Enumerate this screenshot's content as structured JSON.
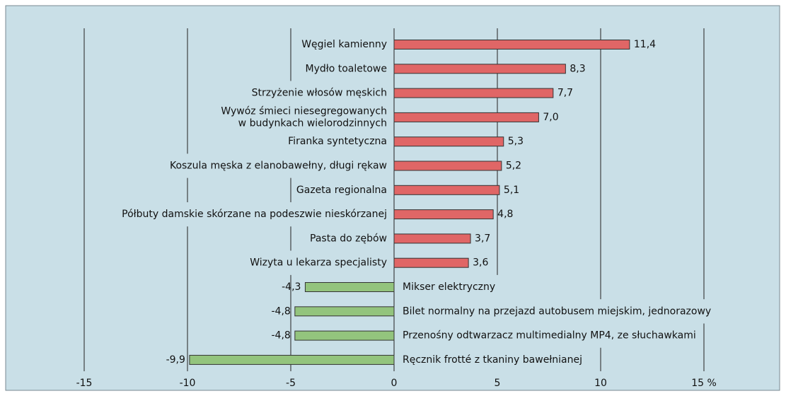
{
  "chart_data": {
    "type": "hbar",
    "categories": [
      "Węgiel kamienny",
      "Mydło toaletowe",
      "Strzyżenie włosów męskich",
      "Wywóz śmieci niesegregowanych\nw budynkach wielorodzinnych",
      "Firanka syntetyczna",
      "Koszula męska z elanobawełny, długi rękaw",
      "Gazeta regionalna",
      "Półbuty damskie skórzane na podeszwie nieskórzanej",
      "Pasta do zębów",
      "Wizyta u lekarza specjalisty",
      "Mikser elektryczny",
      "Bilet normalny na przejazd autobusem miejskim, jednorazowy",
      "Przenośny odtwarzacz multimedialny MP4, ze słuchawkami",
      "Ręcznik frotté z tkaniny bawełnianej"
    ],
    "values": [
      11.4,
      8.3,
      7.7,
      7.0,
      5.3,
      5.2,
      5.1,
      4.8,
      3.7,
      3.6,
      -4.3,
      -4.8,
      -4.8,
      -9.9
    ],
    "value_labels": [
      "11,4",
      "8,3",
      "7,7",
      "7,0",
      "5,3",
      "5,2",
      "5,1",
      "4,8",
      "3,7",
      "3,6",
      "-4,3",
      "-4,8",
      "-4,8",
      "-9,9"
    ],
    "positive_color": "#e06666",
    "negative_color": "#93c47d",
    "xlim": [
      -15,
      15
    ],
    "xticks": [
      -15,
      -10,
      -5,
      0,
      5,
      10,
      {
        "value": 15,
        "label": "15 %"
      }
    ],
    "grid": true
  }
}
